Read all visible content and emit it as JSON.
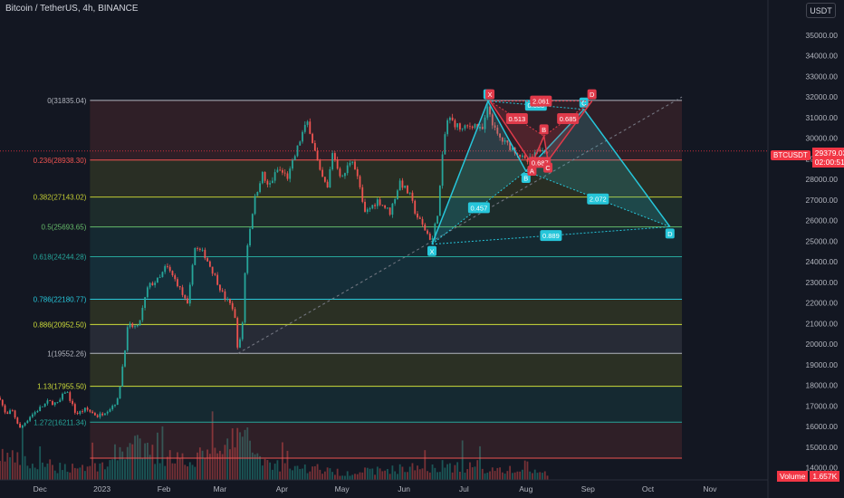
{
  "header": {
    "symbol_title": "Bitcoin / TetherUS, 4h, BINANCE",
    "currency_button": "USDT"
  },
  "price_tag": {
    "symbol": "BTCUSDT",
    "price": "29379.03",
    "countdown": "02:00:51"
  },
  "volume_tag": {
    "label": "Volume",
    "value": "1.657K"
  },
  "colors": {
    "background": "#131722",
    "up": "#26a69a",
    "down": "#ef5350",
    "harmonic_bull": "#26c6da",
    "harmonic_bear": "#e03a4a",
    "price_line": "#f23645"
  },
  "chart_data": {
    "type": "candlestick",
    "y_axis": {
      "range": [
        13850,
        36200
      ],
      "ticks": [
        14000,
        15000,
        16000,
        17000,
        18000,
        19000,
        20000,
        21000,
        22000,
        23000,
        24000,
        25000,
        26000,
        27000,
        28000,
        29000,
        30000,
        31000,
        32000,
        33000,
        34000,
        35000
      ],
      "tick_labels": [
        "14000.00",
        "15000.00",
        "16000.00",
        "17000.00",
        "18000.00",
        "19000.00",
        "20000.00",
        "21000.00",
        "22000.00",
        "23000.00",
        "24000.00",
        "25000.00",
        "26000.00",
        "27000.00",
        "28000.00",
        "29000.00",
        "30000.00",
        "31000.00",
        "32000.00",
        "33000.00",
        "34000.00",
        "35000.00"
      ]
    },
    "x_axis": {
      "range": [
        "2022-11-11",
        "2023-11-30"
      ],
      "ticks": [
        {
          "date": "2022-12-01",
          "label": "Dec"
        },
        {
          "date": "2023-01-01",
          "label": "2023"
        },
        {
          "date": "2023-02-01",
          "label": "Feb"
        },
        {
          "date": "2023-03-01",
          "label": "Mar"
        },
        {
          "date": "2023-04-01",
          "label": "Apr"
        },
        {
          "date": "2023-05-01",
          "label": "May"
        },
        {
          "date": "2023-06-01",
          "label": "Jun"
        },
        {
          "date": "2023-07-01",
          "label": "Jul"
        },
        {
          "date": "2023-08-01",
          "label": "Aug"
        },
        {
          "date": "2023-09-01",
          "label": "Sep"
        },
        {
          "date": "2023-10-01",
          "label": "Oct"
        },
        {
          "date": "2023-11-01",
          "label": "Nov"
        }
      ]
    },
    "price_path": [
      [
        "2022-11-11",
        17400
      ],
      [
        "2022-11-14",
        16500
      ],
      [
        "2022-11-17",
        16800
      ],
      [
        "2022-11-21",
        15900
      ],
      [
        "2022-11-26",
        16500
      ],
      [
        "2022-12-01",
        16900
      ],
      [
        "2022-12-05",
        17200
      ],
      [
        "2022-12-10",
        17100
      ],
      [
        "2022-12-14",
        17800
      ],
      [
        "2022-12-19",
        16600
      ],
      [
        "2022-12-24",
        16850
      ],
      [
        "2022-12-30",
        16500
      ],
      [
        "2023-01-05",
        16900
      ],
      [
        "2023-01-09",
        17300
      ],
      [
        "2023-01-14",
        20900
      ],
      [
        "2023-01-19",
        20800
      ],
      [
        "2023-01-24",
        22800
      ],
      [
        "2023-01-30",
        23200
      ],
      [
        "2023-02-02",
        23800
      ],
      [
        "2023-02-08",
        22900
      ],
      [
        "2023-02-13",
        21800
      ],
      [
        "2023-02-16",
        24700
      ],
      [
        "2023-02-21",
        24400
      ],
      [
        "2023-02-26",
        23400
      ],
      [
        "2023-03-03",
        22300
      ],
      [
        "2023-03-08",
        21700
      ],
      [
        "2023-03-10",
        19700
      ],
      [
        "2023-03-12",
        20600
      ],
      [
        "2023-03-14",
        24400
      ],
      [
        "2023-03-18",
        26900
      ],
      [
        "2023-03-22",
        28300
      ],
      [
        "2023-03-25",
        27600
      ],
      [
        "2023-03-30",
        28500
      ],
      [
        "2023-04-04",
        28100
      ],
      [
        "2023-04-11",
        30200
      ],
      [
        "2023-04-14",
        30800
      ],
      [
        "2023-04-20",
        28300
      ],
      [
        "2023-04-24",
        27500
      ],
      [
        "2023-04-26",
        29400
      ],
      [
        "2023-05-01",
        28000
      ],
      [
        "2023-05-06",
        29100
      ],
      [
        "2023-05-10",
        27600
      ],
      [
        "2023-05-12",
        26300
      ],
      [
        "2023-05-19",
        27000
      ],
      [
        "2023-05-25",
        26400
      ],
      [
        "2023-05-30",
        27900
      ],
      [
        "2023-06-04",
        27200
      ],
      [
        "2023-06-07",
        26300
      ],
      [
        "2023-06-10",
        25800
      ],
      [
        "2023-06-15",
        25000
      ],
      [
        "2023-06-18",
        26500
      ],
      [
        "2023-06-21",
        29900
      ],
      [
        "2023-06-23",
        31000
      ],
      [
        "2023-06-30",
        30400
      ],
      [
        "2023-07-06",
        30700
      ],
      [
        "2023-07-10",
        30300
      ],
      [
        "2023-07-13",
        31500
      ],
      [
        "2023-07-17",
        30200
      ],
      [
        "2023-07-21",
        29800
      ],
      [
        "2023-07-28",
        29300
      ],
      [
        "2023-08-01",
        28800
      ],
      [
        "2023-08-05",
        29100
      ],
      [
        "2023-08-09",
        29600
      ],
      [
        "2023-08-12",
        29400
      ]
    ],
    "volume_profile": [
      [
        "2022-11-11",
        0.55
      ],
      [
        "2022-12-01",
        0.25
      ],
      [
        "2023-01-01",
        0.3
      ],
      [
        "2023-01-14",
        0.75
      ],
      [
        "2023-02-01",
        0.45
      ],
      [
        "2023-03-01",
        0.5
      ],
      [
        "2023-03-10",
        1.0
      ],
      [
        "2023-03-25",
        0.35
      ],
      [
        "2023-05-01",
        0.15
      ],
      [
        "2023-06-21",
        0.3
      ],
      [
        "2023-08-12",
        0.15
      ]
    ],
    "fibonacci": {
      "start_date": "2022-12-26",
      "end_date": "2023-10-18",
      "levels": [
        {
          "ratio": 0,
          "price": 31835.04,
          "label": "0(31835.04)",
          "color": "#b2b5be"
        },
        {
          "ratio": 0.236,
          "price": 28938.3,
          "label": "0.236(28938.30)",
          "color": "#ef5350"
        },
        {
          "ratio": 0.382,
          "price": 27143.02,
          "label": "0.382(27143.02)",
          "color": "#c0ca33"
        },
        {
          "ratio": 0.5,
          "price": 25693.65,
          "label": "0.5(25693.65)",
          "color": "#66bb6a"
        },
        {
          "ratio": 0.618,
          "price": 24244.28,
          "label": "0.618(24244.28)",
          "color": "#26a69a"
        },
        {
          "ratio": 0.786,
          "price": 22180.77,
          "label": "0.786(22180.77)",
          "color": "#26c6da"
        },
        {
          "ratio": 0.886,
          "price": 20952.5,
          "label": "0.886(20952.50)",
          "color": "#cddc39"
        },
        {
          "ratio": 1,
          "price": 19552.26,
          "label": "1(19552.26)",
          "color": "#b2b5be"
        },
        {
          "ratio": 1.13,
          "price": 17955.5,
          "label": "1.13(17955.50)",
          "color": "#cddc39"
        },
        {
          "ratio": 1.272,
          "price": 16211.34,
          "label": "1.272(16211.34)",
          "color": "#26a69a"
        },
        {
          "ratio": 1.414,
          "price": 14467.0,
          "label": "",
          "color": "#ef5350"
        }
      ]
    },
    "trend_line": {
      "from": [
        "2023-03-10",
        19552
      ],
      "to": [
        "2023-10-18",
        32000
      ]
    },
    "harmonic_bull": {
      "points": [
        {
          "label": "X",
          "date": "2023-06-15",
          "price": 24850
        },
        {
          "label": "A",
          "date": "2023-07-13",
          "price": 31800
        },
        {
          "label": "B",
          "date": "2023-08-01",
          "price": 28400
        },
        {
          "label": "C",
          "date": "2023-08-30",
          "price": 31400
        },
        {
          "label": "D",
          "date": "2023-10-12",
          "price": 25700
        }
      ],
      "ratios": [
        "0.457",
        "0.883",
        "2.072",
        "0.889"
      ]
    },
    "harmonic_bear": {
      "points": [
        {
          "label": "X",
          "date": "2023-07-14",
          "price": 31800
        },
        {
          "label": "A",
          "date": "2023-08-04",
          "price": 28750
        },
        {
          "label": "B",
          "date": "2023-08-10",
          "price": 30100
        },
        {
          "label": "C",
          "date": "2023-08-12",
          "price": 28900
        },
        {
          "label": "D",
          "date": "2023-09-03",
          "price": 31800
        }
      ],
      "ratios": [
        "0.513",
        "0.687",
        "0.685",
        "2.061"
      ]
    }
  }
}
